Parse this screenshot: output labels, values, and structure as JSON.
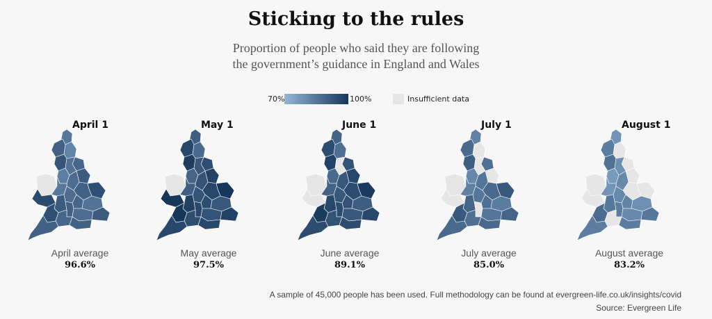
{
  "title": "Sticking to the rules",
  "subtitle_line1": "Proportion of people who said they are following",
  "subtitle_line2": "the government’s guidance in England and Wales",
  "legend": {
    "min_label": "70%",
    "max_label": "100%",
    "insufficient_label": "Insufficient data",
    "color_low": "#93b6d8",
    "color_high": "#17375a",
    "color_insufficient": "#e6e6e6"
  },
  "panels": [
    {
      "month": "April 1",
      "avg_label": "April average",
      "avg_value": "96.6%",
      "level": 0.62,
      "insufficient": [
        "wales-n"
      ]
    },
    {
      "month": "May 1",
      "avg_label": "May average",
      "avg_value": "97.5%",
      "level": 0.82,
      "insufficient": [
        "wales-n"
      ]
    },
    {
      "month": "June 1",
      "avg_label": "June average",
      "avg_value": "89.1%",
      "level": 0.78,
      "insufficient": [
        "wales-n",
        "wales-s",
        "mid-1"
      ]
    },
    {
      "month": "July 1",
      "avg_label": "July average",
      "avg_value": "85.0%",
      "level": 0.55,
      "insufficient": [
        "wales-n",
        "wales-s",
        "mid-1",
        "east-1",
        "ne-1",
        "south-2"
      ]
    },
    {
      "month": "August 1",
      "avg_label": "August average",
      "avg_value": "83.2%",
      "level": 0.4,
      "insufficient": [
        "wales-n",
        "wales-s",
        "east-1",
        "east-2",
        "ne-1",
        "ne-2",
        "sw-2",
        "mid-3"
      ]
    }
  ],
  "footnote": "A sample of 45,000 people has been used. Full methodology can be found at evergreen-life.co.uk/insights/covid",
  "source": "Source: Evergreen Life"
}
